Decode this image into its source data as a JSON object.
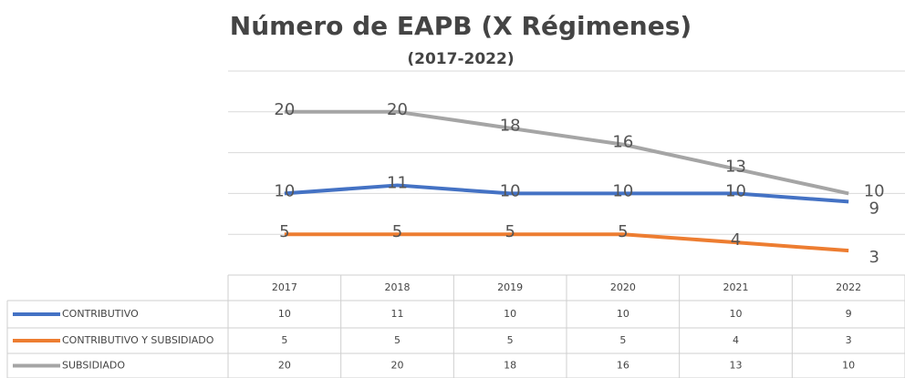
{
  "chart_data": {
    "type": "line",
    "title": "Número de EAPB (X Régimenes)",
    "subtitle": "(2017-2022)",
    "categories": [
      "2017",
      "2018",
      "2019",
      "2020",
      "2021",
      "2022"
    ],
    "series": [
      {
        "name": "CONTRIBUTIVO",
        "color": "#4472c4",
        "values": [
          10,
          11,
          10,
          10,
          10,
          9
        ]
      },
      {
        "name": "CONTRIBUTIVO Y SUBSIDIADO",
        "color": "#ed7d31",
        "values": [
          5,
          5,
          5,
          5,
          4,
          3
        ]
      },
      {
        "name": "SUBSIDIADO",
        "color": "#a5a5a5",
        "values": [
          20,
          20,
          18,
          16,
          13,
          10
        ]
      }
    ],
    "ylim": [
      0,
      25
    ],
    "yticks": [
      0,
      5,
      10,
      15,
      20,
      25
    ],
    "grid": true
  }
}
